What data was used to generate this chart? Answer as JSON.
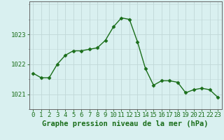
{
  "hours": [
    0,
    1,
    2,
    3,
    4,
    5,
    6,
    7,
    8,
    9,
    10,
    11,
    12,
    13,
    14,
    15,
    16,
    17,
    18,
    19,
    20,
    21,
    22,
    23
  ],
  "pressure": [
    1021.7,
    1021.55,
    1021.55,
    1022.0,
    1022.3,
    1022.45,
    1022.45,
    1022.5,
    1022.55,
    1022.8,
    1023.25,
    1023.55,
    1023.5,
    1022.75,
    1021.85,
    1021.3,
    1021.45,
    1021.45,
    1021.4,
    1021.05,
    1021.15,
    1021.2,
    1021.15,
    1020.9
  ],
  "line_color": "#1a6e1a",
  "marker_color": "#1a6e1a",
  "bg_color": "#d9f0f0",
  "grid_color_major": "#c0d8d8",
  "axis_color": "#666666",
  "label_color": "#1a6e1a",
  "xlabel": "Graphe pression niveau de la mer (hPa)",
  "ylim_min": 1020.5,
  "ylim_max": 1024.1,
  "yticks": [
    1021,
    1022,
    1023
  ],
  "xticks": [
    0,
    1,
    2,
    3,
    4,
    5,
    6,
    7,
    8,
    9,
    10,
    11,
    12,
    13,
    14,
    15,
    16,
    17,
    18,
    19,
    20,
    21,
    22,
    23
  ],
  "xlabel_fontsize": 7.5,
  "tick_fontsize": 6.5,
  "line_width": 1.0,
  "marker_size": 2.5
}
